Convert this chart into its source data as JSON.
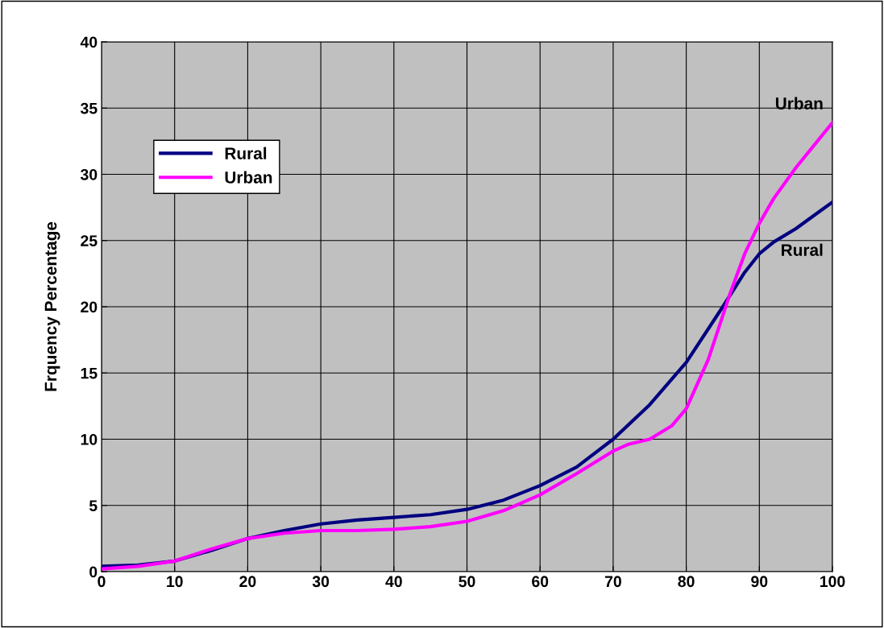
{
  "chart_data": {
    "type": "line",
    "ylabel": "Frquency Percentage",
    "xlim": [
      0,
      100
    ],
    "ylim": [
      0,
      40
    ],
    "xticks": [
      0,
      10,
      20,
      30,
      40,
      50,
      60,
      70,
      80,
      90,
      100
    ],
    "yticks": [
      0,
      5,
      10,
      15,
      20,
      25,
      30,
      35,
      40
    ],
    "grid": true,
    "legend": "top left",
    "marker": "none",
    "line_style": "solid",
    "series": [
      {
        "name": "Rural",
        "color": "#000080",
        "x": [
          0,
          5,
          10,
          15,
          20,
          25,
          30,
          35,
          40,
          45,
          50,
          55,
          60,
          65,
          70,
          75,
          80,
          85,
          88,
          90,
          92,
          95,
          100
        ],
        "values": [
          0.4,
          0.5,
          0.8,
          1.6,
          2.5,
          3.1,
          3.6,
          3.9,
          4.1,
          4.3,
          4.7,
          5.4,
          6.5,
          7.9,
          10,
          12.6,
          15.8,
          20,
          22.6,
          24,
          24.9,
          25.9,
          27.9
        ]
      },
      {
        "name": "Urban",
        "color": "#ff00ff",
        "x": [
          0,
          5,
          10,
          15,
          20,
          25,
          30,
          35,
          40,
          45,
          50,
          55,
          60,
          65,
          70,
          72,
          75,
          78,
          80,
          83,
          86,
          88,
          90,
          92,
          95,
          100
        ],
        "values": [
          0.2,
          0.4,
          0.8,
          1.7,
          2.5,
          2.9,
          3.1,
          3.1,
          3.2,
          3.4,
          3.8,
          4.6,
          5.8,
          7.4,
          9.1,
          9.6,
          10,
          11,
          12.3,
          16,
          21,
          24,
          26.3,
          28.2,
          30.5,
          33.9
        ]
      }
    ],
    "annotations": [
      {
        "text": "Urban",
        "x": 100,
        "y": 33.9
      },
      {
        "text": "Rural",
        "x": 100,
        "y": 27.9
      }
    ]
  }
}
